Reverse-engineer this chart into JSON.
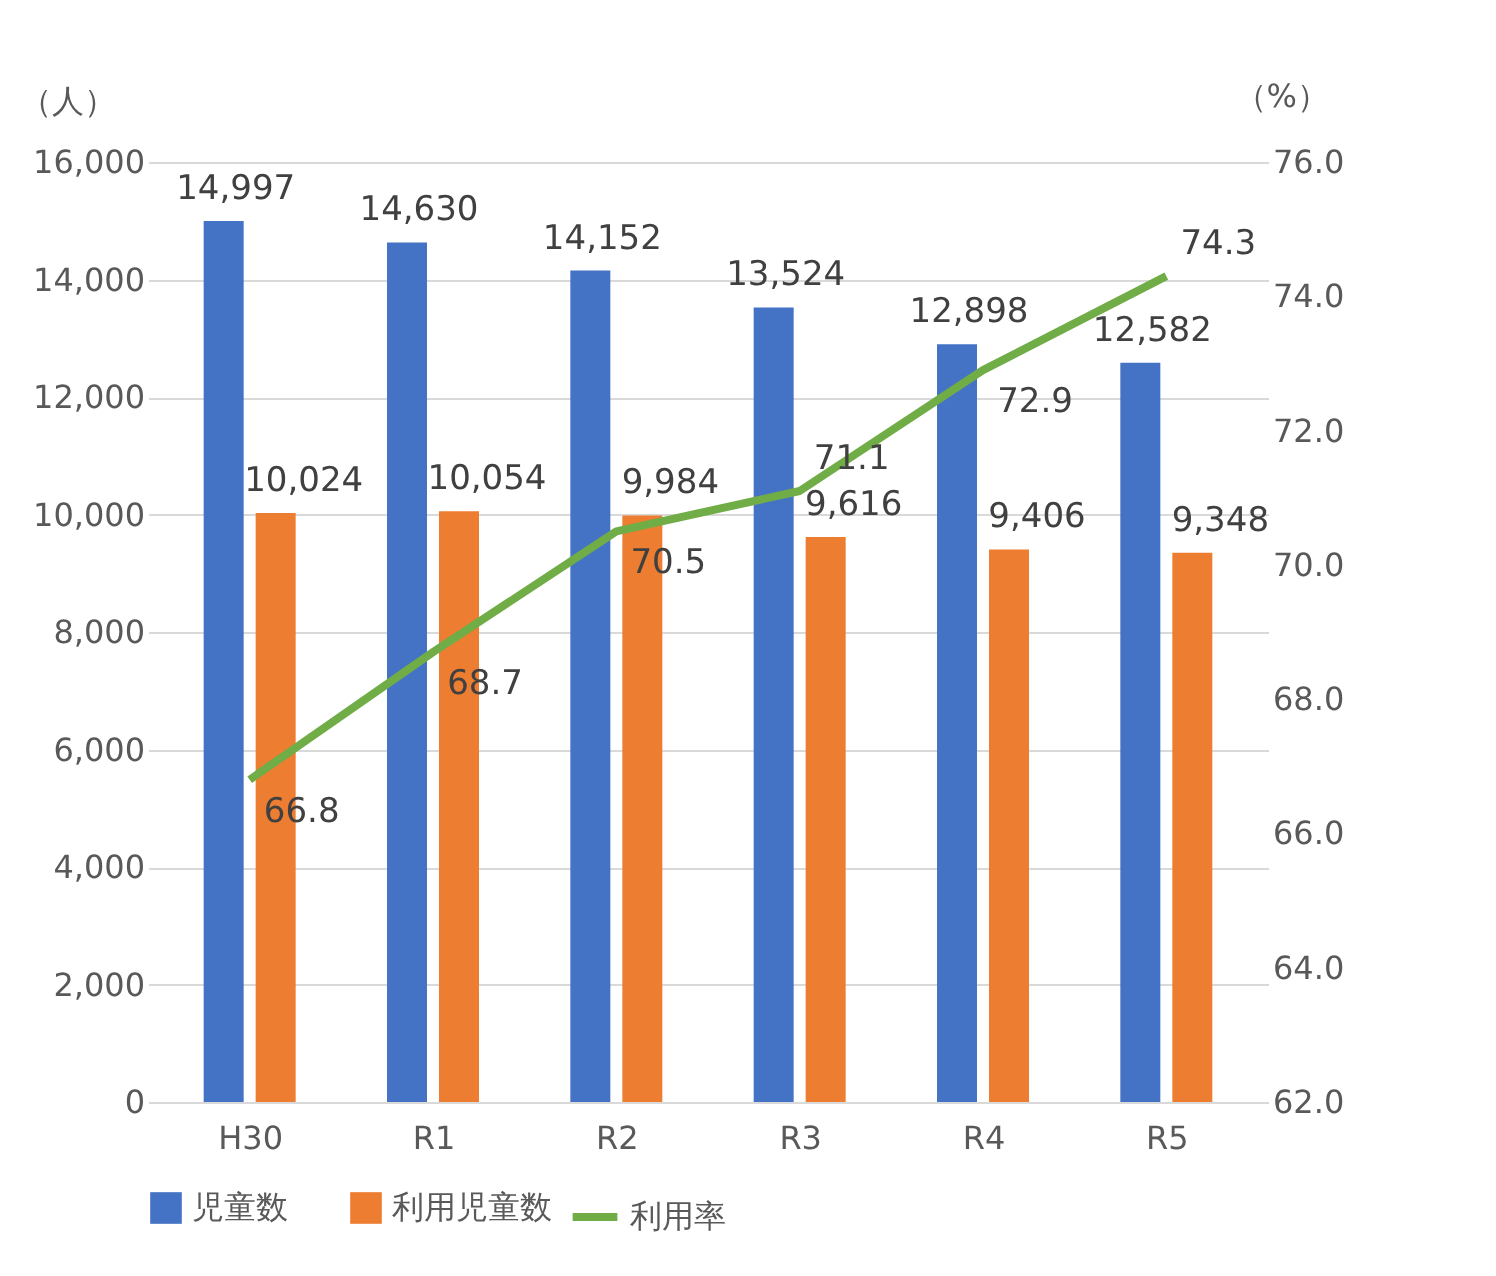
{
  "chart_data": {
    "type": "bar",
    "categories": [
      "H30",
      "R1",
      "R2",
      "R3",
      "R4",
      "R5"
    ],
    "ylabel": "（人）",
    "y2label": "（%）",
    "series": [
      {
        "name": "児童数",
        "color": "#4472c4",
        "values": [
          14997,
          14630,
          14152,
          13524,
          12898,
          12582
        ],
        "value_labels": [
          "14,997",
          "14,630",
          "14,152",
          "13,524",
          "12,898",
          "12,582"
        ]
      },
      {
        "name": "利用児童数",
        "color": "#ed7d31",
        "values": [
          10024,
          10054,
          9984,
          9616,
          9406,
          9348
        ],
        "value_labels": [
          "10,024",
          "10,054",
          "9,984",
          "9,616",
          "9,406",
          "9,348"
        ]
      },
      {
        "name": "利用率",
        "color": "#70ad47",
        "type": "line",
        "axis": "y2",
        "values": [
          66.8,
          68.7,
          70.5,
          71.1,
          72.9,
          74.3
        ]
      }
    ],
    "ylim": [
      0,
      16000
    ],
    "yticks": [
      {
        "value": 0,
        "label": "0"
      },
      {
        "value": 2000,
        "label": "2,000"
      },
      {
        "value": 4000,
        "label": "4,000"
      },
      {
        "value": 6000,
        "label": "6,000"
      },
      {
        "value": 8000,
        "label": "8,000"
      },
      {
        "value": 10000,
        "label": "10,000"
      },
      {
        "value": 12000,
        "label": "12,000"
      },
      {
        "value": 14000,
        "label": "14,000"
      },
      {
        "value": 16000,
        "label": "16,000"
      }
    ],
    "y2lim": [
      62,
      76
    ],
    "y2ticks": [
      {
        "value": 62,
        "label": "62.0"
      },
      {
        "value": 64,
        "label": "64.0"
      },
      {
        "value": 66,
        "label": "66.0"
      },
      {
        "value": 68,
        "label": "68.0"
      },
      {
        "value": 70,
        "label": "70.0"
      },
      {
        "value": 72,
        "label": "72.0"
      },
      {
        "value": 74,
        "label": "74.0"
      },
      {
        "value": 76,
        "label": "76.0"
      }
    ],
    "grid": "y",
    "legend": "bottom",
    "data_labels": true,
    "line_style": "solid",
    "marker": "none"
  }
}
